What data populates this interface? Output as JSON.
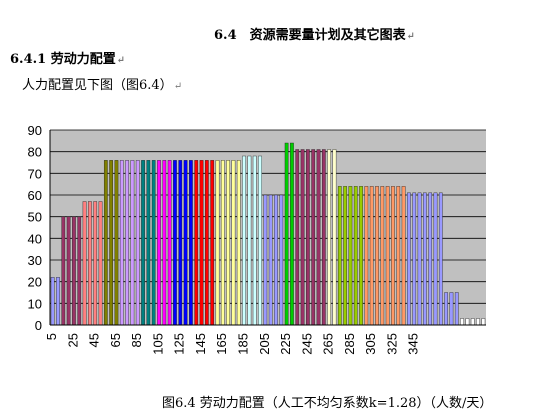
{
  "document": {
    "section_title": "6.4　资源需要量计划及其它图表",
    "subsection_title": "6.4.1  劳动力配置",
    "intro_text": "人力配置见下图（图6.4）",
    "caption": "图6.4  劳动力配置（人工不均匀系数k=1.28）（人数/天）"
  },
  "chart_data": {
    "type": "bar",
    "title": "",
    "xlabel": "",
    "ylabel": "",
    "ylim": [
      0,
      90
    ],
    "yticks": [
      0,
      10,
      20,
      30,
      40,
      50,
      60,
      70,
      80,
      90
    ],
    "xticks": [
      5,
      25,
      45,
      65,
      85,
      105,
      125,
      145,
      165,
      185,
      205,
      225,
      245,
      265,
      285,
      305,
      325,
      345
    ],
    "grid": true,
    "legend": "none",
    "plot_background": "#c0c0c0",
    "groups": [
      {
        "count": 2,
        "value": 22,
        "color": "#9999ff"
      },
      {
        "count": 4,
        "value": 50,
        "color": "#993366"
      },
      {
        "count": 4,
        "value": 57,
        "color": "#ff8080"
      },
      {
        "count": 3,
        "value": 76,
        "color": "#808000"
      },
      {
        "count": 4,
        "value": 76,
        "color": "#cc99ff"
      },
      {
        "count": 3,
        "value": 76,
        "color": "#008080"
      },
      {
        "count": 3,
        "value": 76,
        "color": "#ff00ff"
      },
      {
        "count": 4,
        "value": 76,
        "color": "#0000ff"
      },
      {
        "count": 4,
        "value": 76,
        "color": "#ff0000"
      },
      {
        "count": 5,
        "value": 76,
        "color": "#ffff99"
      },
      {
        "count": 4,
        "value": 78,
        "color": "#ccffff"
      },
      {
        "count": 4,
        "value": 60,
        "color": "#9999ff"
      },
      {
        "count": 2,
        "value": 84,
        "color": "#00cc00"
      },
      {
        "count": 6,
        "value": 81,
        "color": "#993366"
      },
      {
        "count": 2,
        "value": 81,
        "color": "#ffffcc"
      },
      {
        "count": 5,
        "value": 64,
        "color": "#99cc00"
      },
      {
        "count": 8,
        "value": 64,
        "color": "#ff9966"
      },
      {
        "count": 7,
        "value": 61,
        "color": "#9999ff"
      },
      {
        "count": 3,
        "value": 15,
        "color": "#9999ff"
      },
      {
        "count": 5,
        "value": 3,
        "color": "#ffffff"
      }
    ]
  }
}
